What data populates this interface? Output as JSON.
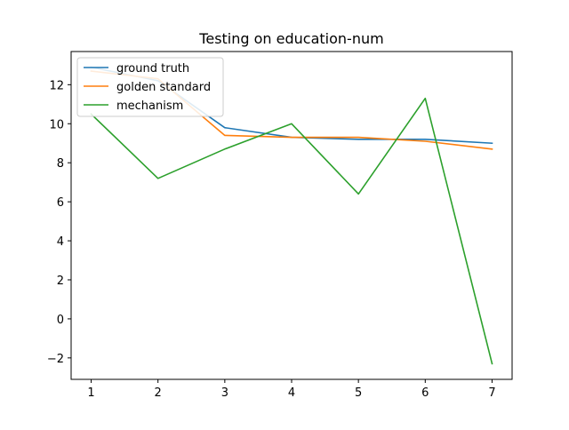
{
  "chart_data": {
    "type": "line",
    "title": "Testing on education-num",
    "xlabel": "",
    "ylabel": "",
    "x": [
      1,
      2,
      3,
      4,
      5,
      6,
      7
    ],
    "xlim": [
      0.7,
      7.3
    ],
    "ylim": [
      -3.1,
      13.7
    ],
    "xticks": [
      1,
      2,
      3,
      4,
      5,
      6,
      7
    ],
    "yticks": [
      -2,
      0,
      2,
      4,
      6,
      8,
      10,
      12
    ],
    "grid": false,
    "legend_position": "upper left",
    "series": [
      {
        "name": "ground truth",
        "color": "#1f77b4",
        "values": [
          12.9,
          12.2,
          9.8,
          9.3,
          9.2,
          9.2,
          9.0
        ]
      },
      {
        "name": "golden standard",
        "color": "#ff7f0e",
        "values": [
          12.7,
          12.3,
          9.4,
          9.3,
          9.3,
          9.1,
          8.7
        ]
      },
      {
        "name": "mechanism",
        "color": "#2ca02c",
        "values": [
          10.5,
          7.2,
          8.7,
          10.0,
          6.4,
          11.3,
          -2.3
        ]
      }
    ]
  }
}
